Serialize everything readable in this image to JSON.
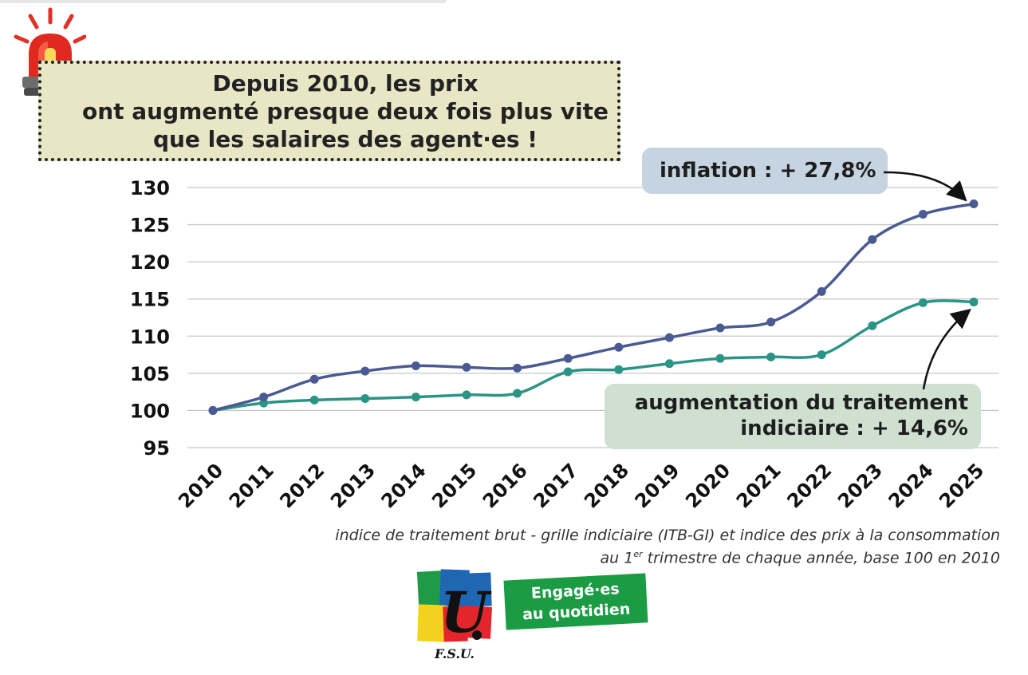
{
  "headline": {
    "lines": [
      "Depuis 2010, les prix",
      "ont augmenté presque deux fois plus vite",
      "que les salaires des agent·es !"
    ]
  },
  "annotations": {
    "inflation": "inflation : + 27,8%",
    "salary_line1": "augmentation du traitement",
    "salary_line2": "indiciaire : + 14,6%"
  },
  "source": {
    "line1": "indice de traitement brut - grille indiciaire (ITB-GI) et indice des prix à la consommation",
    "line2_pre": "au 1",
    "line2_sup": "er",
    "line2_post": " trimestre de chaque année, base 100 en 2010"
  },
  "logo": {
    "text": "F.S.U."
  },
  "tagline": {
    "line1": "Engagé·es",
    "line2": "au quotidien"
  },
  "colors": {
    "inflation": "#4a5b93",
    "salary": "#2b9484",
    "headline_bg": "#e8e6c4",
    "tagline_bg": "#1c9b45"
  },
  "icons": [
    "siren-icon",
    "fsu-logo-icon"
  ],
  "chart_data": {
    "type": "line",
    "x": [
      "2010",
      "2011",
      "2012",
      "2013",
      "2014",
      "2015",
      "2016",
      "2017",
      "2018",
      "2019",
      "2020",
      "2021",
      "2022",
      "2023",
      "2024",
      "2025"
    ],
    "ylim": [
      95,
      130
    ],
    "yticks": [
      95,
      100,
      105,
      110,
      115,
      120,
      125,
      130
    ],
    "grid": true,
    "series": [
      {
        "name": "inflation",
        "values": [
          100,
          101.8,
          104.2,
          105.3,
          106.0,
          105.8,
          105.7,
          107.0,
          108.5,
          109.8,
          111.1,
          111.9,
          116.0,
          123.0,
          126.4,
          127.8
        ]
      },
      {
        "name": "augmentation du traitement indiciaire",
        "values": [
          100,
          101.0,
          101.4,
          101.6,
          101.8,
          102.1,
          102.3,
          105.2,
          105.5,
          106.3,
          107.0,
          107.2,
          107.5,
          111.4,
          114.5,
          114.6
        ]
      }
    ]
  }
}
